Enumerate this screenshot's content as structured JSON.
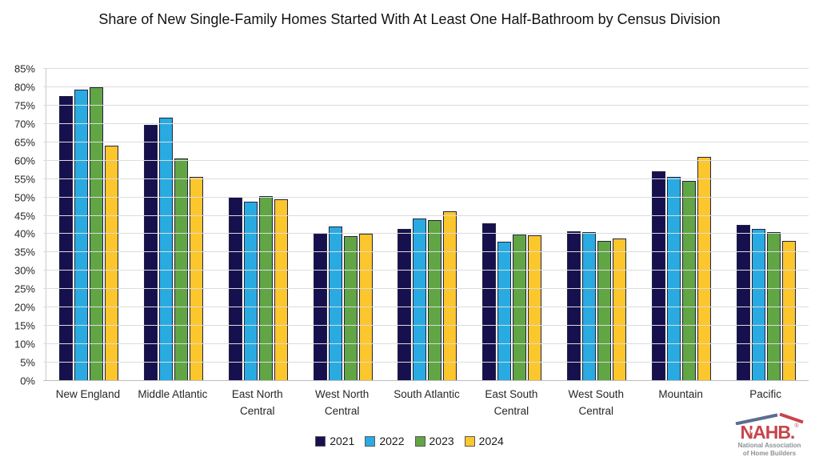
{
  "title": "Share of New Single-Family Homes Started With At Least One Half-Bathroom by Census Division",
  "chart_data": {
    "type": "bar",
    "title": "Share of New Single-Family Homes Started With At Least One Half-Bathroom by Census Division",
    "categories": [
      "New England",
      "Middle Atlantic",
      "East North Central",
      "West North Central",
      "South Atlantic",
      "East South Central",
      "West South Central",
      "Mountain",
      "Pacific"
    ],
    "series": [
      {
        "name": "2021",
        "color": "#17104E",
        "values": [
          77.5,
          69.8,
          50.2,
          40.0,
          41.5,
          43.0,
          40.7,
          57.2,
          42.6
        ]
      },
      {
        "name": "2022",
        "color": "#29ABE2",
        "values": [
          79.4,
          71.7,
          48.9,
          42.0,
          44.2,
          38.0,
          40.5,
          55.6,
          41.4
        ]
      },
      {
        "name": "2023",
        "color": "#61A544",
        "values": [
          79.9,
          60.5,
          50.4,
          39.4,
          43.9,
          39.9,
          38.2,
          54.4,
          40.5
        ]
      },
      {
        "name": "2024",
        "color": "#FCC62D",
        "values": [
          64.0,
          55.5,
          49.5,
          40.0,
          46.1,
          39.7,
          38.9,
          61.1,
          38.2
        ]
      }
    ],
    "xlabel": "",
    "ylabel": "",
    "ylim": [
      0,
      85
    ],
    "ytick_step": 5,
    "ytick_format": "percent",
    "grid": "horizontal",
    "legend_position": "bottom"
  },
  "logo": {
    "name": "NAHB.",
    "registered_mark": "®",
    "star_glyph": "★",
    "subtitle_line1": "National Association",
    "subtitle_line2": "of Home Builders",
    "red": "#C8444B",
    "roof_blue": "#5D6D90",
    "subtitle_gray": "#8D9094"
  }
}
